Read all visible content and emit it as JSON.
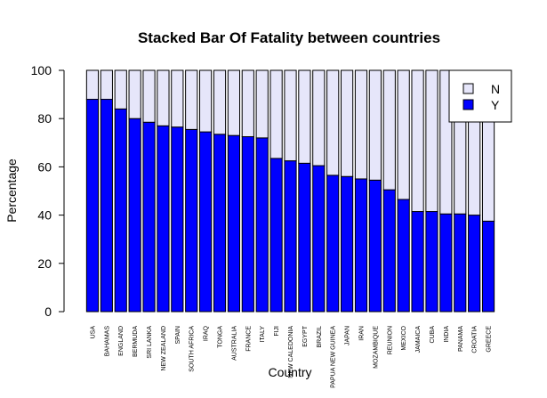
{
  "chart_data": {
    "type": "bar",
    "stacked": true,
    "title": "Stacked Bar Of Fatality between countries",
    "xlabel": "Country",
    "ylabel": "Percentage",
    "ylim": [
      0,
      100
    ],
    "yticks": [
      0,
      20,
      40,
      60,
      80,
      100
    ],
    "grid": false,
    "legend_position": "top-right",
    "categories": [
      "USA",
      "BAHAMAS",
      "ENGLAND",
      "BERMUDA",
      "SRI LANKA",
      "NEW ZEALAND",
      "SPAIN",
      "SOUTH AFRICA",
      "IRAQ",
      "TONGA",
      "AUSTRALIA",
      "FRANCE",
      "ITALY",
      "FIJI",
      "NEW CALEDONIA",
      "EGYPT",
      "BRAZIL",
      "PAPUA NEW GUINEA",
      "JAPAN",
      "IRAN",
      "MOZAMBIQUE",
      "REUNION",
      "MEXICO",
      "JAMAICA",
      "CUBA",
      "INDIA",
      "PANAMA",
      "CROATIA",
      "GREECE"
    ],
    "series": [
      {
        "name": "Y",
        "color": "#0000ff",
        "values": [
          88,
          88,
          84,
          80,
          78.5,
          77,
          76.5,
          75.5,
          74.5,
          73.5,
          73,
          72.5,
          72,
          63.5,
          62.5,
          61.5,
          60.5,
          56.5,
          56,
          55,
          54.5,
          50.5,
          46.5,
          41.5,
          41.5,
          40.5,
          40.5,
          40,
          37.5
        ]
      },
      {
        "name": "N",
        "color": "#e6e6fa",
        "values": [
          12,
          12,
          16,
          20,
          21.5,
          23,
          23.5,
          24.5,
          25.5,
          26.5,
          27,
          27.5,
          28,
          36.5,
          37.5,
          38.5,
          39.5,
          43.5,
          44,
          45,
          45.5,
          49.5,
          53.5,
          58.5,
          58.5,
          59.5,
          59.5,
          60,
          62.5
        ]
      }
    ]
  }
}
